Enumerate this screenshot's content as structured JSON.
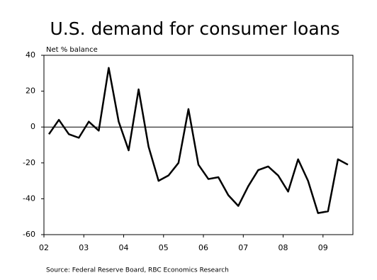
{
  "chart_data": {
    "type": "line",
    "title": "U.S. demand for consumer loans",
    "y_label": "Net % balance",
    "source": "Source: Federal Reserve Board, RBC Economics Research",
    "x": [
      2002.125,
      2002.375,
      2002.625,
      2002.875,
      2003.125,
      2003.375,
      2003.625,
      2003.875,
      2004.125,
      2004.375,
      2004.625,
      2004.875,
      2005.125,
      2005.375,
      2005.625,
      2005.875,
      2006.125,
      2006.375,
      2006.625,
      2006.875,
      2007.125,
      2007.375,
      2007.625,
      2007.875,
      2008.125,
      2008.375,
      2008.625,
      2008.875,
      2009.125,
      2009.375,
      2009.625
    ],
    "values": [
      -4,
      4,
      -4,
      -6,
      3,
      -2,
      33,
      3,
      -13,
      21,
      -11,
      -30,
      -27,
      -20,
      10,
      -21,
      -29,
      -28,
      -38,
      -44,
      -33,
      -24,
      -22,
      -27,
      -36,
      -18,
      -30,
      -48,
      -47,
      -18,
      -21
    ],
    "color": "#000000",
    "xlim": [
      2002,
      2009.75
    ],
    "xticks": [
      {
        "value": 2002,
        "label": "02"
      },
      {
        "value": 2003,
        "label": "03"
      },
      {
        "value": 2004,
        "label": "04"
      },
      {
        "value": 2005,
        "label": "05"
      },
      {
        "value": 2006,
        "label": "06"
      },
      {
        "value": 2007,
        "label": "07"
      },
      {
        "value": 2008,
        "label": "08"
      },
      {
        "value": 2009,
        "label": "09"
      }
    ],
    "ylim": [
      -60,
      40
    ],
    "yticks": [
      -60,
      -40,
      -20,
      0,
      20,
      40
    ],
    "zero_line": true
  }
}
